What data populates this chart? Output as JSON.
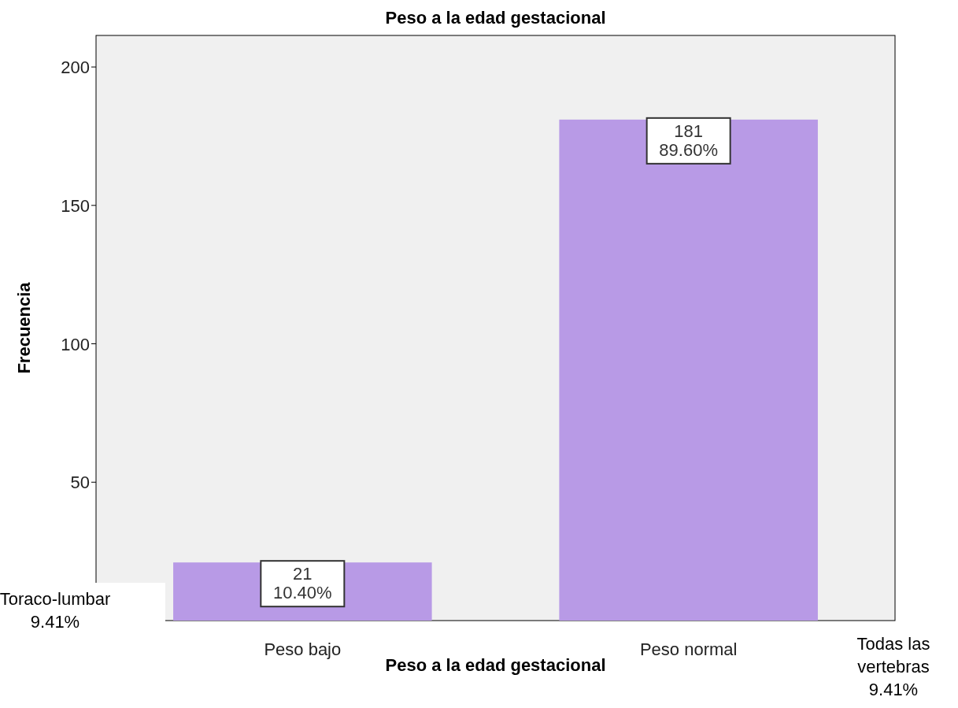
{
  "chart_data": {
    "type": "bar",
    "title": "Peso a la edad gestacional",
    "xlabel": "Peso a la edad gestacional",
    "ylabel": "Frecuencia",
    "categories": [
      "Peso bajo",
      "Peso normal"
    ],
    "values": [
      21,
      181
    ],
    "value_labels": [
      "21\n10.40%",
      "181\n89.60%"
    ],
    "color": "#b89ae6",
    "ylim": [
      0,
      211.4
    ],
    "yticks": [
      50,
      100,
      150,
      200
    ],
    "grid": false,
    "annotations": [
      "Toraco-lumbar\n9.41%",
      "Todas las\nvertebras\n9.41%"
    ]
  }
}
